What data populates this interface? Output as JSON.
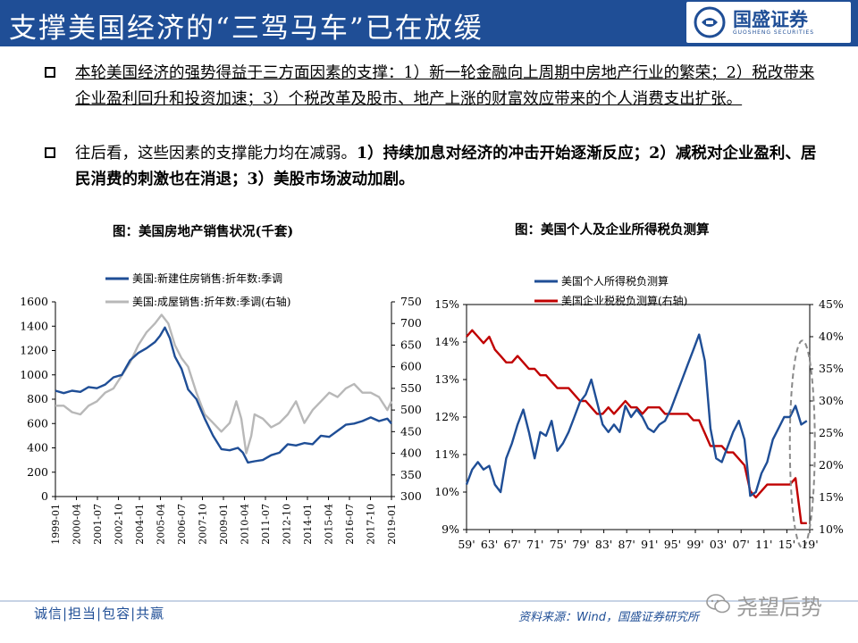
{
  "header": {
    "title": "支撑美国经济的“三驾马车”已在放缓",
    "logo_text": "国盛证券",
    "logo_sub": "GUOSHENG SECURITIES"
  },
  "bullets": [
    {
      "segments": [
        {
          "text": "本轮美国经济的强势得益于三方面因素的支撑：1）新一轮金融向上周期中房地产行业的繁荣；2）税改带来企业盈利回升和投资加速；3）个税改革及股市、地产上涨的财富效应带来的个人消费支出扩张。",
          "style": "u"
        }
      ]
    },
    {
      "segments": [
        {
          "text": "往后看，这些因素的支撑能力均在减弱。",
          "style": "n"
        },
        {
          "text": "1）持续加息对经济的冲击开始逐渐反应；2）减税对企业盈利、居民消费的刺激也在消退；3）美股市场波动加剧。",
          "style": "b"
        }
      ]
    }
  ],
  "footer": {
    "left": "诚信|担当|包容|共赢",
    "source": "资料来源：Wind，国盛证券研究所",
    "watermark": "尧望后势"
  },
  "colors": {
    "brand": "#1f4e96",
    "series_blue": "#1f4e96",
    "series_gray": "#b8b8b8",
    "series_red": "#c00000"
  },
  "chart_data": [
    {
      "type": "line",
      "title": "图：美国房地产销售状况(千套)",
      "x_ticks": [
        "1999-01",
        "2000-04",
        "2001-07",
        "2002-10",
        "2004-01",
        "2005-04",
        "2006-07",
        "2007-10",
        "2009-01",
        "2010-04",
        "2011-07",
        "2012-10",
        "2014-01",
        "2015-04",
        "2016-07",
        "2017-10",
        "2019-01"
      ],
      "x_range": [
        1999.0,
        2019.25
      ],
      "y_left": {
        "range": [
          0,
          1600
        ],
        "ticks": [
          "0",
          "200",
          "400",
          "600",
          "800",
          "1000",
          "1200",
          "1400",
          "1600"
        ]
      },
      "y_right": {
        "range": [
          300,
          750
        ],
        "ticks": [
          "300",
          "350",
          "400",
          "450",
          "500",
          "550",
          "600",
          "650",
          "700",
          "750"
        ]
      },
      "legend_position": "top-left",
      "series": [
        {
          "name": "美国:新建住房销售:折年数:季调",
          "axis": "left",
          "color": "#1f4e96",
          "points": [
            [
              1999.0,
              870
            ],
            [
              1999.5,
              850
            ],
            [
              2000.0,
              870
            ],
            [
              2000.5,
              860
            ],
            [
              2001.0,
              900
            ],
            [
              2001.5,
              890
            ],
            [
              2002.0,
              920
            ],
            [
              2002.5,
              980
            ],
            [
              2003.0,
              1000
            ],
            [
              2003.5,
              1120
            ],
            [
              2004.0,
              1180
            ],
            [
              2004.5,
              1220
            ],
            [
              2005.0,
              1270
            ],
            [
              2005.3,
              1320
            ],
            [
              2005.6,
              1389
            ],
            [
              2005.9,
              1300
            ],
            [
              2006.2,
              1150
            ],
            [
              2006.6,
              1050
            ],
            [
              2007.0,
              880
            ],
            [
              2007.5,
              800
            ],
            [
              2008.0,
              640
            ],
            [
              2008.5,
              500
            ],
            [
              2009.0,
              390
            ],
            [
              2009.5,
              380
            ],
            [
              2010.0,
              400
            ],
            [
              2010.3,
              360
            ],
            [
              2010.6,
              280
            ],
            [
              2011.0,
              290
            ],
            [
              2011.5,
              300
            ],
            [
              2012.0,
              340
            ],
            [
              2012.5,
              360
            ],
            [
              2013.0,
              430
            ],
            [
              2013.5,
              420
            ],
            [
              2014.0,
              440
            ],
            [
              2014.5,
              430
            ],
            [
              2015.0,
              500
            ],
            [
              2015.5,
              490
            ],
            [
              2016.0,
              540
            ],
            [
              2016.5,
              590
            ],
            [
              2017.0,
              600
            ],
            [
              2017.5,
              620
            ],
            [
              2018.0,
              650
            ],
            [
              2018.5,
              620
            ],
            [
              2019.0,
              640
            ],
            [
              2019.25,
              600
            ]
          ]
        },
        {
          "name": "美国:成屋销售:折年数:季调(右轴)",
          "axis": "right",
          "color": "#b8b8b8",
          "points": [
            [
              1999.0,
              510
            ],
            [
              1999.5,
              510
            ],
            [
              2000.0,
              495
            ],
            [
              2000.5,
              490
            ],
            [
              2001.0,
              510
            ],
            [
              2001.5,
              520
            ],
            [
              2002.0,
              540
            ],
            [
              2002.5,
              550
            ],
            [
              2003.0,
              580
            ],
            [
              2003.5,
              610
            ],
            [
              2004.0,
              650
            ],
            [
              2004.5,
              680
            ],
            [
              2005.0,
              700
            ],
            [
              2005.4,
              720
            ],
            [
              2005.8,
              700
            ],
            [
              2006.2,
              650
            ],
            [
              2006.6,
              620
            ],
            [
              2007.0,
              600
            ],
            [
              2007.5,
              540
            ],
            [
              2008.0,
              490
            ],
            [
              2008.5,
              470
            ],
            [
              2009.0,
              450
            ],
            [
              2009.5,
              470
            ],
            [
              2009.9,
              520
            ],
            [
              2010.2,
              480
            ],
            [
              2010.5,
              400
            ],
            [
              2010.8,
              440
            ],
            [
              2011.0,
              490
            ],
            [
              2011.5,
              480
            ],
            [
              2012.0,
              460
            ],
            [
              2012.5,
              470
            ],
            [
              2013.0,
              490
            ],
            [
              2013.5,
              520
            ],
            [
              2014.0,
              470
            ],
            [
              2014.5,
              500
            ],
            [
              2015.0,
              520
            ],
            [
              2015.5,
              540
            ],
            [
              2016.0,
              530
            ],
            [
              2016.5,
              550
            ],
            [
              2017.0,
              560
            ],
            [
              2017.5,
              540
            ],
            [
              2018.0,
              540
            ],
            [
              2018.5,
              530
            ],
            [
              2019.0,
              500
            ],
            [
              2019.25,
              520
            ]
          ]
        }
      ]
    },
    {
      "type": "line",
      "title": "图：美国个人及企业所得税负测算",
      "x_ticks": [
        "59'",
        "63'",
        "67'",
        "71'",
        "75'",
        "79'",
        "83'",
        "87'",
        "91'",
        "95'",
        "99'",
        "03'",
        "07'",
        "11'",
        "15'",
        "19'"
      ],
      "x_range": [
        1959,
        2019.5
      ],
      "y_left": {
        "range": [
          9,
          15
        ],
        "ticks": [
          "9%",
          "10%",
          "11%",
          "12%",
          "13%",
          "14%",
          "15%"
        ]
      },
      "y_right": {
        "range": [
          10,
          45
        ],
        "ticks": [
          "10%",
          "15%",
          "20%",
          "25%",
          "30%",
          "35%",
          "40%",
          "45%"
        ]
      },
      "legend_position": "top-left",
      "annotation": "dashed ellipse highlighting 2018-2019",
      "series": [
        {
          "name": "美国个人所得税负测算",
          "axis": "left",
          "color": "#1f4e96",
          "points": [
            [
              1959,
              10.2
            ],
            [
              1960,
              10.6
            ],
            [
              1961,
              10.8
            ],
            [
              1962,
              10.6
            ],
            [
              1963,
              10.7
            ],
            [
              1964,
              10.2
            ],
            [
              1965,
              10.0
            ],
            [
              1966,
              10.9
            ],
            [
              1967,
              11.3
            ],
            [
              1968,
              11.8
            ],
            [
              1969,
              12.2
            ],
            [
              1970,
              11.6
            ],
            [
              1971,
              10.9
            ],
            [
              1972,
              11.6
            ],
            [
              1973,
              11.5
            ],
            [
              1974,
              11.9
            ],
            [
              1975,
              11.1
            ],
            [
              1976,
              11.3
            ],
            [
              1977,
              11.6
            ],
            [
              1978,
              12.0
            ],
            [
              1979,
              12.4
            ],
            [
              1980,
              12.6
            ],
            [
              1981,
              13.0
            ],
            [
              1982,
              12.4
            ],
            [
              1983,
              11.8
            ],
            [
              1984,
              11.6
            ],
            [
              1985,
              11.8
            ],
            [
              1986,
              11.6
            ],
            [
              1987,
              12.3
            ],
            [
              1988,
              12.0
            ],
            [
              1989,
              12.2
            ],
            [
              1990,
              12.0
            ],
            [
              1991,
              11.7
            ],
            [
              1992,
              11.6
            ],
            [
              1993,
              11.8
            ],
            [
              1994,
              11.9
            ],
            [
              1995,
              12.2
            ],
            [
              1996,
              12.6
            ],
            [
              1997,
              13.0
            ],
            [
              1998,
              13.4
            ],
            [
              1999,
              13.8
            ],
            [
              2000,
              14.2
            ],
            [
              2001,
              13.5
            ],
            [
              2002,
              11.7
            ],
            [
              2003,
              10.9
            ],
            [
              2004,
              10.8
            ],
            [
              2005,
              11.2
            ],
            [
              2006,
              11.6
            ],
            [
              2007,
              11.9
            ],
            [
              2008,
              11.4
            ],
            [
              2009,
              9.9
            ],
            [
              2010,
              10.0
            ],
            [
              2011,
              10.5
            ],
            [
              2012,
              10.8
            ],
            [
              2013,
              11.4
            ],
            [
              2014,
              11.7
            ],
            [
              2015,
              12.0
            ],
            [
              2016,
              12.0
            ],
            [
              2017,
              12.3
            ],
            [
              2018,
              11.8
            ],
            [
              2019,
              11.9
            ]
          ]
        },
        {
          "name": "美国企业税税负测算(右轴)",
          "axis": "right",
          "color": "#c00000",
          "points": [
            [
              1959,
              40
            ],
            [
              1960,
              41
            ],
            [
              1961,
              40
            ],
            [
              1962,
              39
            ],
            [
              1963,
              40
            ],
            [
              1964,
              38
            ],
            [
              1965,
              37
            ],
            [
              1966,
              36
            ],
            [
              1967,
              36
            ],
            [
              1968,
              37
            ],
            [
              1969,
              36
            ],
            [
              1970,
              35
            ],
            [
              1971,
              35
            ],
            [
              1972,
              34
            ],
            [
              1973,
              34
            ],
            [
              1974,
              33
            ],
            [
              1975,
              32
            ],
            [
              1976,
              32
            ],
            [
              1977,
              32
            ],
            [
              1978,
              31
            ],
            [
              1979,
              30
            ],
            [
              1980,
              30
            ],
            [
              1981,
              29
            ],
            [
              1982,
              28
            ],
            [
              1983,
              28
            ],
            [
              1984,
              29
            ],
            [
              1985,
              28
            ],
            [
              1986,
              29
            ],
            [
              1987,
              30
            ],
            [
              1988,
              29
            ],
            [
              1989,
              29
            ],
            [
              1990,
              28
            ],
            [
              1991,
              29
            ],
            [
              1992,
              29
            ],
            [
              1993,
              29
            ],
            [
              1994,
              28
            ],
            [
              1995,
              28
            ],
            [
              1996,
              28
            ],
            [
              1997,
              28
            ],
            [
              1998,
              28
            ],
            [
              1999,
              27
            ],
            [
              2000,
              27
            ],
            [
              2001,
              25
            ],
            [
              2002,
              23
            ],
            [
              2003,
              23
            ],
            [
              2004,
              23
            ],
            [
              2005,
              22
            ],
            [
              2006,
              22
            ],
            [
              2007,
              21
            ],
            [
              2008,
              20
            ],
            [
              2009,
              16
            ],
            [
              2010,
              15
            ],
            [
              2011,
              16
            ],
            [
              2012,
              17
            ],
            [
              2013,
              17
            ],
            [
              2014,
              17
            ],
            [
              2015,
              17
            ],
            [
              2016,
              17
            ],
            [
              2017,
              18
            ],
            [
              2018,
              11
            ],
            [
              2019,
              11
            ]
          ]
        }
      ]
    }
  ]
}
